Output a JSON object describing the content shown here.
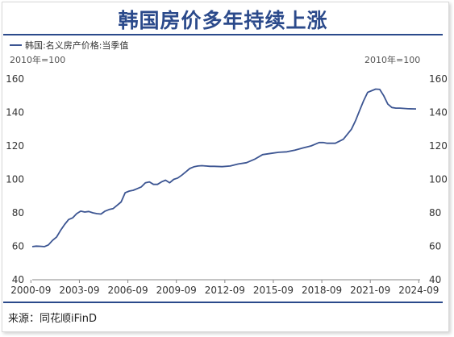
{
  "title": "韩国房价多年持续上涨",
  "legend_label": "韩国:名义房产价格:当季值",
  "unit_left": "2010年=100",
  "unit_right": "2010年=100",
  "source": "来源：同花顺iFinD",
  "colors": {
    "accent": "#2b4a8b",
    "series": "#3c5592"
  },
  "chart_data": {
    "type": "line",
    "title": "韩国房价多年持续上涨",
    "ylim": [
      40,
      160
    ],
    "y_ticks": [
      40,
      60,
      80,
      100,
      120,
      140,
      160
    ],
    "y_tick_labels": [
      "40",
      "60",
      "80",
      "100",
      "120",
      "140",
      "160"
    ],
    "x_range": [
      "2000-09",
      "2024-09"
    ],
    "x_tick_labels": [
      "2000-09",
      "2003-09",
      "2006-09",
      "2009-09",
      "2012-09",
      "2015-09",
      "2018-09",
      "2021-09",
      "2024-09"
    ],
    "grid": false,
    "legend_position": "top-left",
    "series": [
      {
        "name": "韩国:名义房产价格:当季值",
        "x": [
          2000.75,
          2001.0,
          2001.25,
          2001.5,
          2001.75,
          2002.0,
          2002.25,
          2002.5,
          2002.75,
          2003.0,
          2003.25,
          2003.5,
          2003.75,
          2004.0,
          2004.25,
          2004.5,
          2004.75,
          2005.0,
          2005.25,
          2005.5,
          2005.75,
          2006.0,
          2006.25,
          2006.5,
          2006.75,
          2007.0,
          2007.25,
          2007.5,
          2007.75,
          2008.0,
          2008.25,
          2008.5,
          2008.75,
          2009.0,
          2009.25,
          2009.5,
          2009.75,
          2010.0,
          2010.25,
          2010.5,
          2010.75,
          2011.0,
          2011.25,
          2011.5,
          2011.75,
          2012.0,
          2012.5,
          2013.0,
          2013.5,
          2014.0,
          2014.5,
          2015.0,
          2015.5,
          2016.0,
          2016.5,
          2017.0,
          2017.5,
          2018.0,
          2018.25,
          2018.5,
          2018.75,
          2019.0,
          2019.5,
          2020.0,
          2020.5,
          2020.75,
          2021.0,
          2021.25,
          2021.5,
          2021.75,
          2022.0,
          2022.25,
          2022.5,
          2022.75,
          2023.0,
          2023.25,
          2023.5,
          2024.0,
          2024.5
        ],
        "values": [
          59.8,
          60.1,
          60.0,
          59.8,
          60.8,
          63.5,
          65.5,
          69.5,
          73.0,
          76.0,
          77.0,
          79.5,
          81.0,
          80.5,
          80.8,
          80.0,
          79.5,
          79.3,
          81.0,
          82.0,
          82.5,
          84.5,
          86.5,
          92.0,
          93.0,
          93.5,
          94.5,
          95.5,
          98.0,
          98.5,
          97.0,
          97.0,
          98.5,
          99.5,
          98.0,
          100.0,
          100.8,
          102.5,
          104.5,
          106.5,
          107.5,
          108.0,
          108.2,
          108.0,
          107.8,
          107.8,
          107.6,
          108.0,
          109.2,
          110.0,
          112.0,
          114.8,
          115.5,
          116.2,
          116.5,
          117.5,
          118.8,
          120.0,
          121.0,
          122.0,
          122.0,
          121.6,
          121.6,
          124.0,
          130.0,
          135.0,
          141.0,
          147.0,
          152.0,
          153.0,
          154.0,
          153.8,
          150.0,
          145.0,
          143.0,
          142.6,
          142.6,
          142.2,
          142.1
        ]
      }
    ]
  }
}
